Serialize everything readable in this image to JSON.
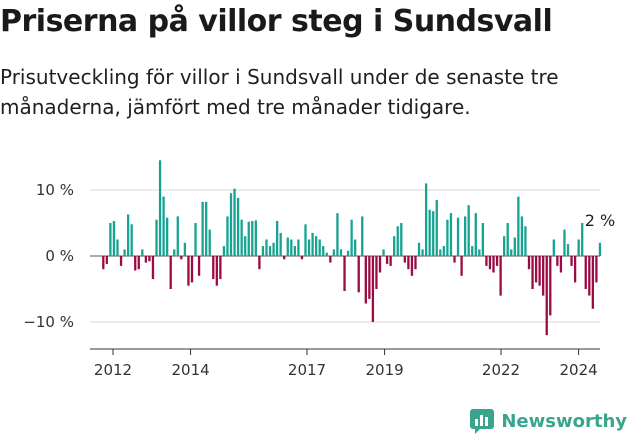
{
  "header": {
    "title": "Priserna på villor steg i Sundsvall",
    "subtitle": "Prisutveckling för villor i Sundsvall under de senaste tre månaderna, jämfört med tre månader tidigare."
  },
  "brand": {
    "name": "Newsworthy",
    "color": "#3aa58e",
    "icon": "newsworthy-logo-icon"
  },
  "colors": {
    "positive": "#17a391",
    "negative": "#9c0a43",
    "axis": "#333333",
    "grid": "#d9d9d9"
  },
  "chart_data": {
    "type": "bar",
    "title": "Priserna på villor steg i Sundsvall",
    "subtitle": "Prisutveckling för villor i Sundsvall under de senaste tre månaderna, jämfört med tre månader tidigare.",
    "xlabel": "",
    "ylabel": "",
    "unit": "%",
    "ylim": [
      -13,
      16
    ],
    "yticks": [
      10,
      0,
      -10
    ],
    "ytick_labels": [
      "10 %",
      "0 %",
      "−10 %"
    ],
    "xlim": [
      2011.6,
      2024.75
    ],
    "xticks": [
      2012,
      2014,
      2017,
      2019,
      2022,
      2024
    ],
    "xtick_labels": [
      "2012",
      "2014",
      "2017",
      "2019",
      "2022",
      "2024"
    ],
    "last_value_label": "2 %",
    "grid": true,
    "values": [
      -2,
      -1.2,
      5,
      5.3,
      2.5,
      -1.5,
      1,
      6.3,
      4.8,
      -2.2,
      -2,
      1,
      -1,
      -0.8,
      -3.5,
      5.5,
      14.5,
      9,
      5.8,
      -5,
      1,
      6,
      -0.5,
      2,
      -4.5,
      -4,
      5,
      -3,
      8.2,
      8.2,
      4,
      -3.5,
      -4.5,
      -3.5,
      1.5,
      6,
      9.5,
      10.2,
      8.8,
      5.5,
      3,
      5.2,
      5.3,
      5.4,
      -2,
      1.5,
      2.5,
      1.5,
      2,
      5.3,
      3.5,
      -0.5,
      2.8,
      2.5,
      1.5,
      2.5,
      -0.5,
      4.8,
      2.5,
      3.5,
      3,
      2.5,
      1.5,
      0.5,
      -1,
      1,
      6.5,
      1,
      -5.3,
      0.8,
      5.5,
      2.5,
      -5.5,
      6,
      -7.2,
      -6.5,
      -10,
      -5,
      -2.5,
      1,
      -1.2,
      -1.5,
      3,
      4.5,
      5,
      -1,
      -2,
      -3,
      -2,
      2,
      1,
      11,
      7,
      6.8,
      8.5,
      1,
      1.5,
      5.5,
      6.5,
      -1,
      5.8,
      -3,
      6,
      7.7,
      1.5,
      6.5,
      1,
      5,
      -1.5,
      -2,
      -2.5,
      -1.5,
      -6,
      3,
      5,
      1,
      2.8,
      9,
      6,
      4.5,
      -2,
      -5,
      -4,
      -4.5,
      -6,
      -12,
      -9,
      2.5,
      -1.5,
      -2.5,
      4,
      1.8,
      -1.5,
      -4,
      2.5,
      5,
      -5,
      -6,
      -8,
      -4,
      2
    ]
  }
}
